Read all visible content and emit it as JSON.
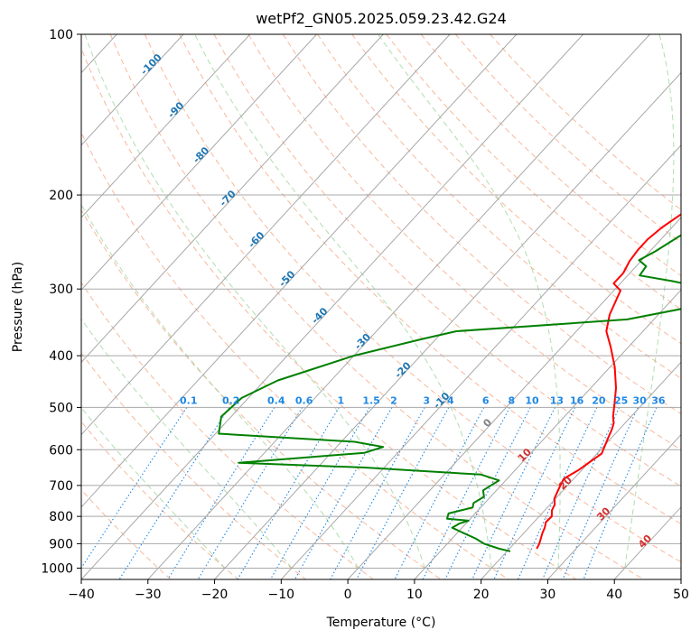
{
  "chart_data": {
    "type": "line",
    "title": "wetPf2_GN05.2025.059.23.42.G24",
    "xlabel": "Temperature (°C)",
    "ylabel": "Pressure (hPa)",
    "xlim": [
      -40,
      50
    ],
    "ylim": [
      1050,
      100
    ],
    "y_scale": "log",
    "x_ticks": [
      -40,
      -30,
      -20,
      -10,
      0,
      10,
      20,
      30,
      40,
      50
    ],
    "y_ticks": [
      100,
      200,
      300,
      400,
      500,
      600,
      700,
      800,
      900,
      1000
    ],
    "grid": true,
    "series": [
      {
        "key": "temperature",
        "color": "#ff0000",
        "points": [
          [
            18.0,
            100
          ],
          [
            16.5,
            106
          ],
          [
            13.3,
            118
          ],
          [
            10.5,
            133
          ],
          [
            11.0,
            150
          ],
          [
            11.0,
            167
          ],
          [
            9.0,
            178
          ],
          [
            6.0,
            190
          ],
          [
            3.7,
            200
          ],
          [
            2.0,
            218
          ],
          [
            1.0,
            230
          ],
          [
            0.5,
            242
          ],
          [
            0.5,
            253
          ],
          [
            0.8,
            266
          ],
          [
            1.5,
            280
          ],
          [
            1.5,
            293
          ],
          [
            3.5,
            302
          ],
          [
            5.2,
            335
          ],
          [
            7.0,
            360
          ],
          [
            9.8,
            385
          ],
          [
            13.2,
            420
          ],
          [
            16.3,
            460
          ],
          [
            18.3,
            493
          ],
          [
            19.8,
            520
          ],
          [
            20.8,
            535
          ],
          [
            21.4,
            550
          ],
          [
            22.0,
            570
          ],
          [
            23.2,
            610
          ],
          [
            22.0,
            655
          ],
          [
            21.0,
            680
          ],
          [
            21.4,
            700
          ],
          [
            22.3,
            740
          ],
          [
            23.2,
            760
          ],
          [
            23.6,
            780
          ],
          [
            24.4,
            800
          ],
          [
            24.3,
            820
          ],
          [
            24.9,
            840
          ],
          [
            25.3,
            860
          ],
          [
            25.8,
            880
          ],
          [
            26.3,
            900
          ],
          [
            26.6,
            920
          ]
        ]
      },
      {
        "key": "dewpoint",
        "color": "#008000",
        "points": [
          [
            7.3,
            100
          ],
          [
            6.0,
            106
          ],
          [
            3.5,
            115
          ],
          [
            3.0,
            122
          ],
          [
            3.0,
            130
          ],
          [
            -2.5,
            150
          ],
          [
            -5.0,
            160
          ],
          [
            -4.0,
            170
          ],
          [
            -1.0,
            180
          ],
          [
            3.0,
            195
          ],
          [
            3.0,
            208
          ],
          [
            2.5,
            218
          ],
          [
            3.5,
            225
          ],
          [
            2.5,
            237
          ],
          [
            0.8,
            255
          ],
          [
            -0.4,
            265
          ],
          [
            1.5,
            272
          ],
          [
            1.8,
            283
          ],
          [
            7.5,
            290
          ],
          [
            12.8,
            298
          ],
          [
            14.0,
            310
          ],
          [
            13.5,
            325
          ],
          [
            6.0,
            342
          ],
          [
            -18.0,
            360
          ],
          [
            -22.0,
            372
          ],
          [
            -30.0,
            400
          ],
          [
            -38.0,
            445
          ],
          [
            -41.0,
            480
          ],
          [
            -41.5,
            520
          ],
          [
            -39.5,
            560
          ],
          [
            -18.0,
            580
          ],
          [
            -13.0,
            593
          ],
          [
            -15.0,
            608
          ],
          [
            -32.5,
            635
          ],
          [
            -13.0,
            648
          ],
          [
            5.5,
            668
          ],
          [
            9.0,
            685
          ],
          [
            8.5,
            700
          ],
          [
            8.0,
            715
          ],
          [
            9.0,
            735
          ],
          [
            8.3,
            755
          ],
          [
            8.8,
            770
          ],
          [
            6.0,
            790
          ],
          [
            6.5,
            808
          ],
          [
            10.0,
            815
          ],
          [
            9.0,
            825
          ],
          [
            8.5,
            840
          ],
          [
            11.0,
            860
          ],
          [
            13.5,
            880
          ],
          [
            15.5,
            900
          ],
          [
            18.5,
            920
          ],
          [
            20.5,
            930
          ]
        ]
      }
    ],
    "dry_adiabats": [
      -30,
      -20,
      -10,
      0,
      10,
      20,
      30,
      40,
      50,
      60,
      70,
      80,
      90,
      100,
      110,
      120,
      130,
      140,
      150
    ],
    "moist_adiabats": [
      -20,
      -10,
      0,
      10,
      20,
      30,
      40
    ],
    "isotherm_labels": [
      {
        "text": "-100",
        "x": -100,
        "p": 115
      },
      {
        "text": "-90",
        "x": -90,
        "p": 140
      },
      {
        "text": "-80",
        "x": -80,
        "p": 170
      },
      {
        "text": "-70",
        "x": -70,
        "p": 205
      },
      {
        "text": "-60",
        "x": -60,
        "p": 245
      },
      {
        "text": "-50",
        "x": -50,
        "p": 290
      },
      {
        "text": "-40",
        "x": -40,
        "p": 340
      },
      {
        "text": "-30",
        "x": -30,
        "p": 380
      },
      {
        "text": "-20",
        "x": -20,
        "p": 430
      },
      {
        "text": "-10",
        "x": -10,
        "p": 490
      },
      {
        "text": "0",
        "x": 0,
        "p": 540
      },
      {
        "text": "10",
        "x": 10,
        "p": 620
      },
      {
        "text": "20",
        "x": 20,
        "p": 700
      },
      {
        "text": "30",
        "x": 30,
        "p": 800
      },
      {
        "text": "40",
        "x": 40,
        "p": 900
      }
    ],
    "mixing_ratio_labels": [
      "0.1",
      "0.2",
      "0.4",
      "0.6",
      "1",
      "1.5",
      "2",
      "3",
      "4",
      "6",
      "8",
      "10",
      "13",
      "16",
      "20",
      "25",
      "30",
      "36"
    ]
  }
}
